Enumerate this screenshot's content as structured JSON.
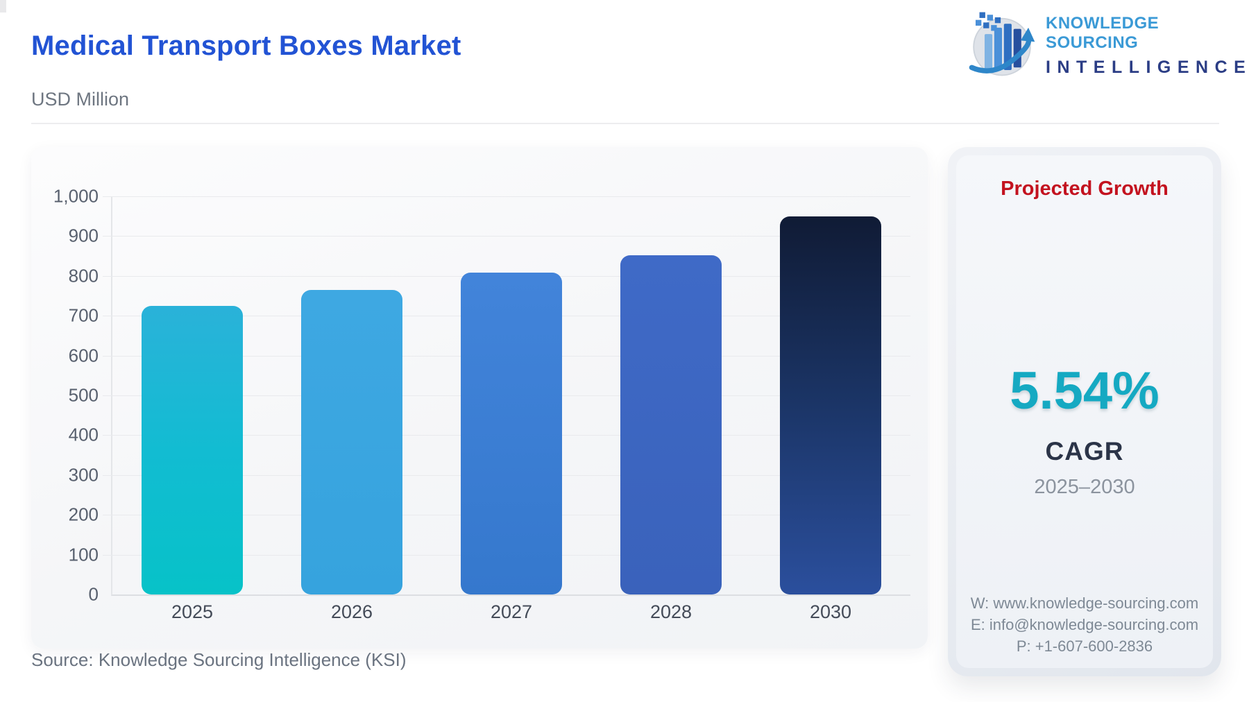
{
  "header": {
    "title": "Medical Transport Boxes Market",
    "title_color": "#2253d4",
    "subtitle": "USD Million"
  },
  "brand": {
    "logo_icon": "bar-chart-globe-arrow",
    "name_line1": "KNOWLEDGE SOURCING",
    "name_line1_color": "#3b9ad6",
    "name_line2": "INTELLIGENCE",
    "name_line2_color": "#2b3d85"
  },
  "chart_data": {
    "type": "bar",
    "title": "Medical Transport Boxes Market",
    "unit": "USD Million",
    "categories": [
      "2025",
      "2026",
      "2027",
      "2028",
      "2030"
    ],
    "values": [
      725,
      765,
      808,
      852,
      950
    ],
    "ylim": [
      0,
      1000
    ],
    "ytick_step": 100,
    "ytick_labels": [
      "0",
      "100",
      "200",
      "300",
      "400",
      "500",
      "600",
      "700",
      "800",
      "900",
      "1,000"
    ],
    "grid": "horizontal",
    "legend": "none",
    "bar_color_stops": [
      [
        "#2ab2d9",
        "#12bcd2",
        "#07c2c8"
      ],
      [
        "#3ea8e2",
        "#36a3de"
      ],
      [
        "#4284da",
        "#3578cd"
      ],
      [
        "#3f6ac7",
        "#3a62bb"
      ],
      [
        "#101b35",
        "#1b3567",
        "#2b4f9d"
      ]
    ]
  },
  "side_panel": {
    "heading": "Projected Growth",
    "heading_color": "#c3121f",
    "cagr_value": "5.54%",
    "cagr_value_color": "#15a9c2",
    "cagr_label": "CAGR",
    "period": "2025–2030",
    "contact": {
      "website": "W: www.knowledge-sourcing.com",
      "email": "E: info@knowledge-sourcing.com",
      "phone": "P: +1-607-600-2836"
    }
  },
  "footer": {
    "source": "Source: Knowledge Sourcing Intelligence (KSI)"
  }
}
